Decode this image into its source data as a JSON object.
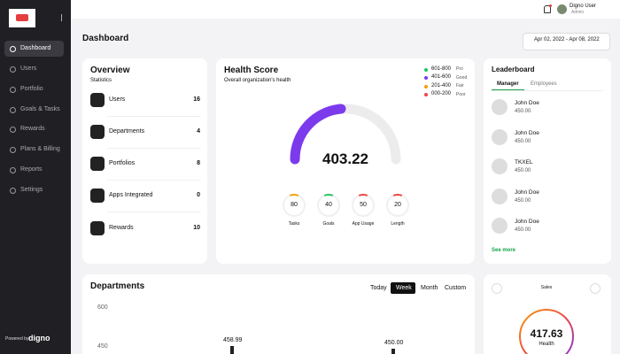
{
  "sidebar": {
    "menu": [
      "Dashboard",
      "Users",
      "Portfolio",
      "Goals & Tasks",
      "Rewards",
      "Plans & Billing",
      "Reports",
      "Settings"
    ],
    "footer": "Powered by",
    "brand": "digno"
  },
  "header": {
    "user_name": "Digno User",
    "user_role": "Admin"
  },
  "page": {
    "title": "Dashboard",
    "date_range": "Apr 02, 2022 - Apr 08, 2022"
  },
  "overview": {
    "title": "Overview",
    "subtitle": "Statistics",
    "rows": [
      [
        "Users",
        16
      ],
      [
        "Departments",
        4
      ],
      [
        "Portfolios",
        8
      ],
      [
        "Apps Integrated",
        0
      ],
      [
        "Rewards",
        10
      ]
    ]
  },
  "health": {
    "title": "Health Score",
    "subtitle": "Overall organization's health",
    "legend": [
      {
        "range": "601-800",
        "label": "Pro",
        "color": "#22c55e"
      },
      {
        "range": "401-600",
        "label": "Good",
        "color": "#7c3aed"
      },
      {
        "range": "201-400",
        "label": "Fair",
        "color": "#f59e0b"
      },
      {
        "range": "000-200",
        "label": "Poor",
        "color": "#ef4444"
      }
    ],
    "score": 403.22,
    "metrics": [
      {
        "value": 80,
        "label": "Tasks",
        "color": "#f59e0b"
      },
      {
        "value": 40,
        "label": "Goals",
        "color": "#22c55e"
      },
      {
        "value": 50,
        "label": "App Usage",
        "color": "#ef4444"
      },
      {
        "value": 20,
        "label": "Length",
        "color": "#ef4444"
      }
    ]
  },
  "leaderboard": {
    "title": "Leaderboard",
    "tabs": [
      "Manager",
      "Employees"
    ],
    "entries": [
      [
        "John Doe",
        "450.00"
      ],
      [
        "John Doe",
        "450.00"
      ],
      [
        "TKXEL",
        "450.00"
      ],
      [
        "John Doe",
        "450.00"
      ],
      [
        "John Doe",
        "450.00"
      ]
    ],
    "more": "See more"
  },
  "departments": {
    "title": "Departments",
    "tabs": [
      "Today",
      "Week",
      "Month",
      "Custom"
    ],
    "yticks": [
      600,
      450
    ],
    "bar_labels": [
      "458.99",
      "450.00"
    ]
  },
  "sales": {
    "title": "Sales",
    "value": 417.63,
    "label": "Health"
  }
}
